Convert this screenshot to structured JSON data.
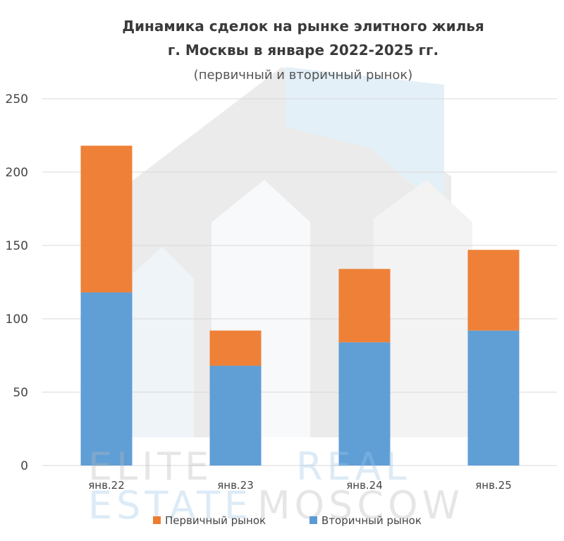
{
  "chart_data": {
    "type": "bar",
    "stacked": true,
    "title": "Динамика сделок на рынке элитного жилья",
    "title_line2": "г. Москвы в январе 2022-2025 гг.",
    "subtitle": "(первичный и вторичный рынок)",
    "categories": [
      "янв.22",
      "янв.23",
      "янв.24",
      "янв.25"
    ],
    "series": [
      {
        "name": "Вторичный рынок",
        "color": "#5b9bd5",
        "values": [
          118,
          68,
          84,
          92
        ]
      },
      {
        "name": "Первичный рынок",
        "color": "#ed7d31",
        "values": [
          100,
          24,
          50,
          55
        ]
      }
    ],
    "ylim": [
      0,
      250
    ],
    "yticks": [
      0,
      50,
      100,
      150,
      200,
      250
    ],
    "grid": true,
    "legend_position": "bottom"
  },
  "watermark": {
    "line1_part1": "ELITE",
    "line1_part2": "REAL",
    "line2_part1": "ESTATE",
    "line2_part2": "MOSCOW"
  },
  "colors": {
    "primary_market": "#ed7d31",
    "secondary_market": "#5b9bd5",
    "gridline": "#d9d9d9"
  }
}
